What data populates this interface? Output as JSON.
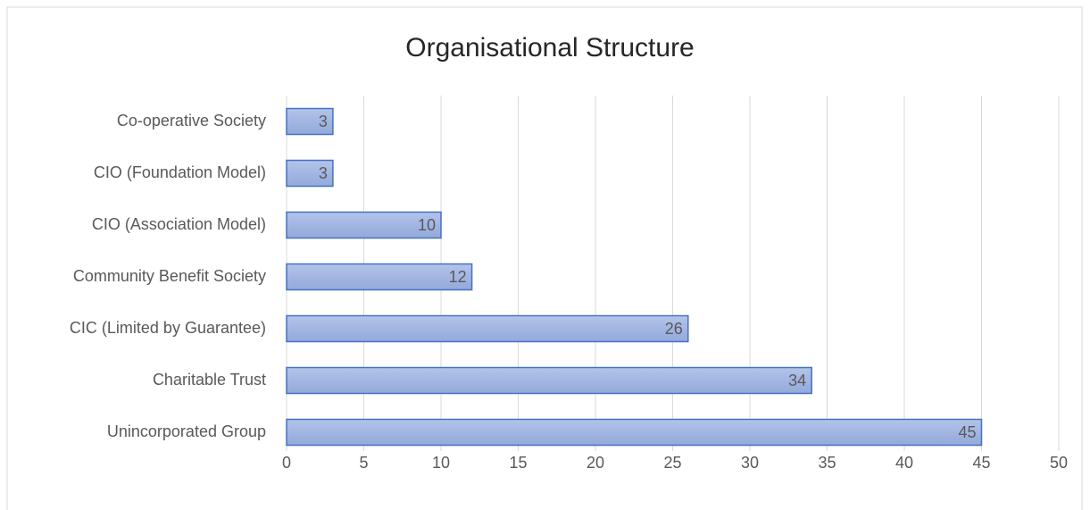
{
  "chart_data": {
    "type": "barh",
    "title": "Organisational Structure",
    "categories": [
      "Co-operative Society",
      "CIO (Foundation Model)",
      "CIO (Association Model)",
      "Community Benefit Society",
      "CIC (Limited by Guarantee)",
      "Charitable Trust",
      "Unincorporated Group"
    ],
    "values": [
      3,
      3,
      10,
      12,
      26,
      34,
      45
    ],
    "color": "#a3b6e2",
    "edge_color": "#4472c4",
    "xlim": [
      0,
      50
    ],
    "xticks": [
      0,
      5,
      10,
      15,
      20,
      25,
      30,
      35,
      40,
      45,
      50
    ],
    "grid": true
  }
}
